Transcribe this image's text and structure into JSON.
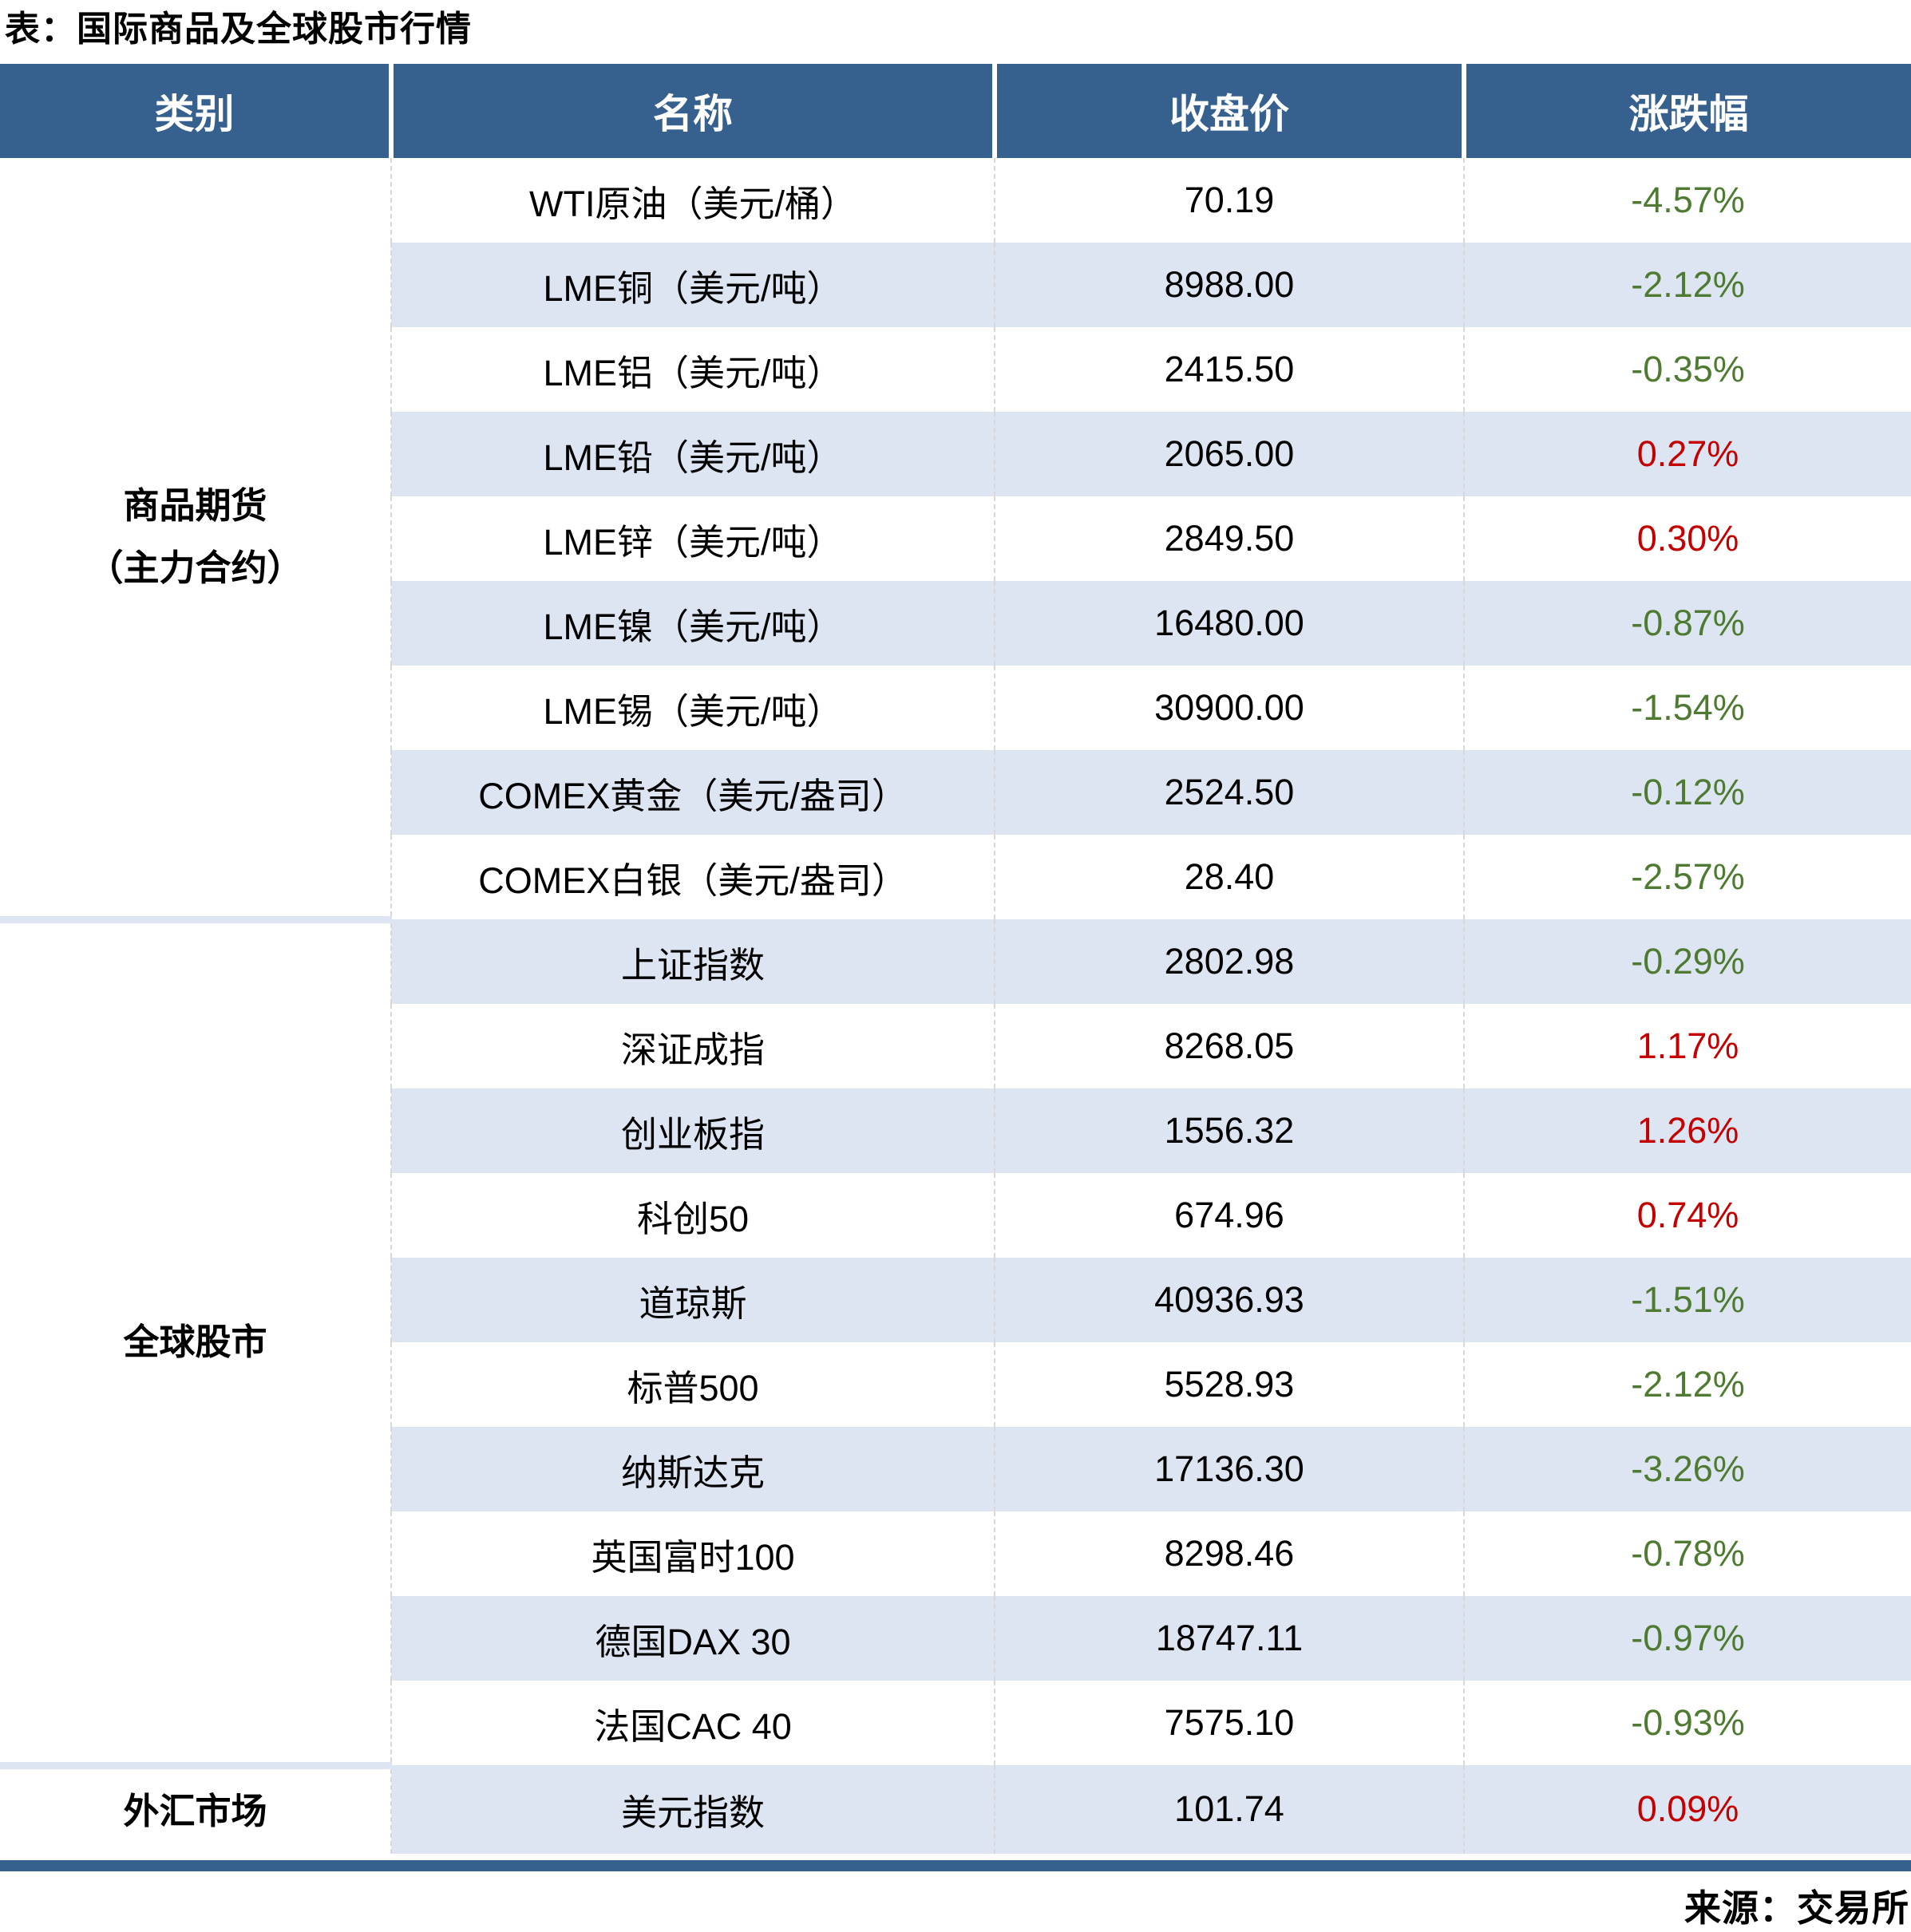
{
  "title": "表：国际商品及全球股市行情",
  "source": "来源：交易所",
  "colors": {
    "header_bg": "#36608E",
    "band_bg": "#DCE5F1",
    "negative_green": "#4E7B31",
    "positive_red": "#C40000",
    "bottom_bar": "#36608E"
  },
  "table": {
    "headers": [
      "类别",
      "名称",
      "收盘价",
      "涨跌幅"
    ],
    "categories": [
      {
        "label": "商品期货\n（主力合约）",
        "rowspan": 9
      },
      {
        "label": "全球股市",
        "rowspan": 10
      },
      {
        "label": "外汇市场",
        "rowspan": 1
      }
    ],
    "rows": [
      {
        "name": "WTI原油（美元/桶）",
        "close": "70.19",
        "change": "-4.57%"
      },
      {
        "name": "LME铜（美元/吨）",
        "close": "8988.00",
        "change": "-2.12%"
      },
      {
        "name": "LME铝（美元/吨）",
        "close": "2415.50",
        "change": "-0.35%"
      },
      {
        "name": "LME铅（美元/吨）",
        "close": "2065.00",
        "change": "0.27%"
      },
      {
        "name": "LME锌（美元/吨）",
        "close": "2849.50",
        "change": "0.30%"
      },
      {
        "name": "LME镍（美元/吨）",
        "close": "16480.00",
        "change": "-0.87%"
      },
      {
        "name": "LME锡（美元/吨）",
        "close": "30900.00",
        "change": "-1.54%"
      },
      {
        "name": "COMEX黄金（美元/盎司）",
        "close": "2524.50",
        "change": "-0.12%"
      },
      {
        "name": "COMEX白银（美元/盎司）",
        "close": "28.40",
        "change": "-2.57%"
      },
      {
        "name": "上证指数",
        "close": "2802.98",
        "change": "-0.29%"
      },
      {
        "name": "深证成指",
        "close": "8268.05",
        "change": "1.17%"
      },
      {
        "name": "创业板指",
        "close": "1556.32",
        "change": "1.26%"
      },
      {
        "name": "科创50",
        "close": "674.96",
        "change": "0.74%"
      },
      {
        "name": "道琼斯",
        "close": "40936.93",
        "change": "-1.51%"
      },
      {
        "name": "标普500",
        "close": "5528.93",
        "change": "-2.12%"
      },
      {
        "name": "纳斯达克",
        "close": "17136.30",
        "change": "-3.26%"
      },
      {
        "name": "英国富时100",
        "close": "8298.46",
        "change": "-0.78%"
      },
      {
        "name": "德国DAX 30",
        "close": "18747.11",
        "change": "-0.97%"
      },
      {
        "name": "法国CAC 40",
        "close": "7575.10",
        "change": "-0.93%"
      },
      {
        "name": "美元指数",
        "close": "101.74",
        "change": "0.09%"
      }
    ]
  }
}
